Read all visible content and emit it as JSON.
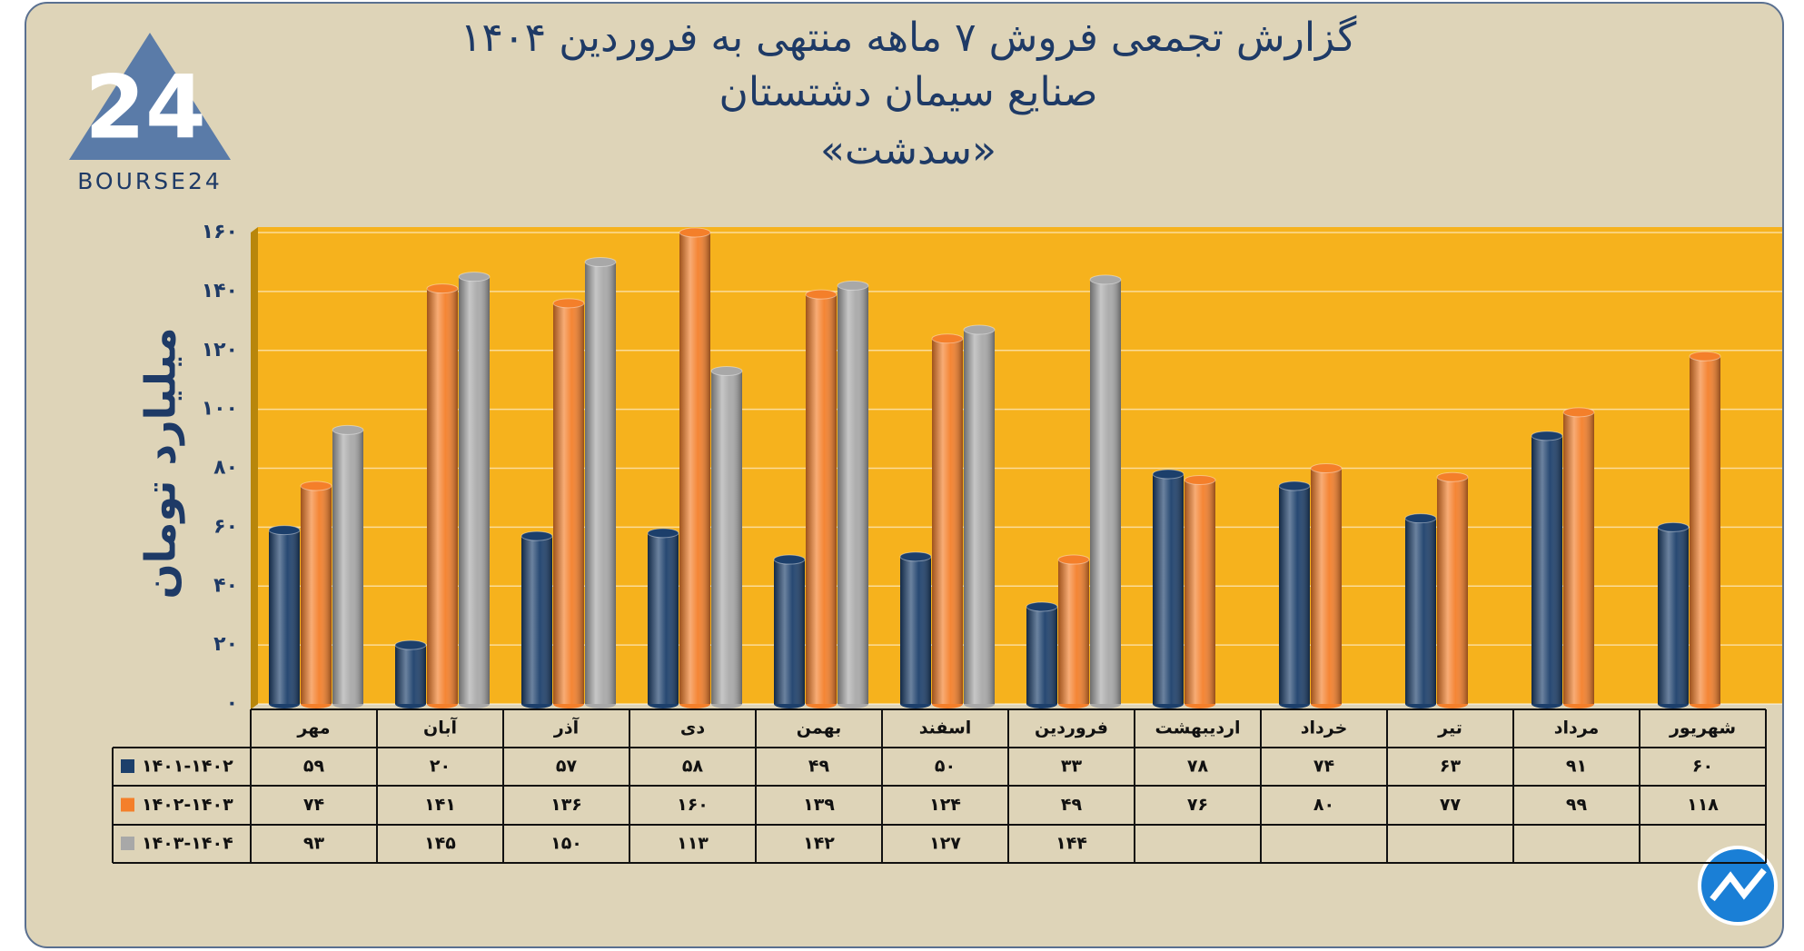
{
  "logo": {
    "mark": "24",
    "text": "BOURSE24"
  },
  "chart_data": {
    "type": "bar",
    "title": "گزارش تجمعی فروش ۷ ماهه منتهی به فروردین ۱۴۰۴",
    "subtitle": "صنایع سیمان دشتستان",
    "subtitle2": "«سدشت»",
    "y_label": "میلیارد تومان",
    "categories": [
      "مهر",
      "آبان",
      "آذر",
      "دی",
      "بهمن",
      "اسفند",
      "فروردین",
      "اردیبهشت",
      "خرداد",
      "تیر",
      "مرداد",
      "شهریور"
    ],
    "series": [
      {
        "name": "۱۴۰۱-۱۴۰۲",
        "color": "#1c3f6b",
        "values": [
          59,
          20,
          57,
          58,
          49,
          50,
          33,
          78,
          74,
          63,
          91,
          60
        ],
        "value_labels": [
          "۵۹",
          "۲۰",
          "۵۷",
          "۵۸",
          "۴۹",
          "۵۰",
          "۳۳",
          "۷۸",
          "۷۴",
          "۶۳",
          "۹۱",
          "۶۰"
        ]
      },
      {
        "name": "۱۴۰۲-۱۴۰۳",
        "color": "#f47f2a",
        "values": [
          74,
          141,
          136,
          160,
          139,
          124,
          49,
          76,
          80,
          77,
          99,
          118
        ],
        "value_labels": [
          "۷۴",
          "۱۴۱",
          "۱۳۶",
          "۱۶۰",
          "۱۳۹",
          "۱۲۴",
          "۴۹",
          "۷۶",
          "۸۰",
          "۷۷",
          "۹۹",
          "۱۱۸"
        ]
      },
      {
        "name": "۱۴۰۳-۱۴۰۴",
        "color": "#a8a8a8",
        "values": [
          93,
          145,
          150,
          113,
          142,
          127,
          144,
          null,
          null,
          null,
          null,
          null
        ],
        "value_labels": [
          "۹۳",
          "۱۴۵",
          "۱۵۰",
          "۱۱۳",
          "۱۴۲",
          "۱۲۷",
          "۱۴۴",
          null,
          null,
          null,
          null,
          null
        ]
      }
    ],
    "ylim": [
      0,
      160
    ],
    "yticks": [
      {
        "value": 0,
        "label": "۰"
      },
      {
        "value": 20,
        "label": "۲۰"
      },
      {
        "value": 40,
        "label": "۴۰"
      },
      {
        "value": 60,
        "label": "۶۰"
      },
      {
        "value": 80,
        "label": "۸۰"
      },
      {
        "value": 100,
        "label": "۱۰۰"
      },
      {
        "value": 120,
        "label": "۱۲۰"
      },
      {
        "value": 140,
        "label": "۱۴۰"
      },
      {
        "value": 160,
        "label": "۱۶۰"
      }
    ],
    "grid": true,
    "plot_color": "#f6b21d"
  }
}
